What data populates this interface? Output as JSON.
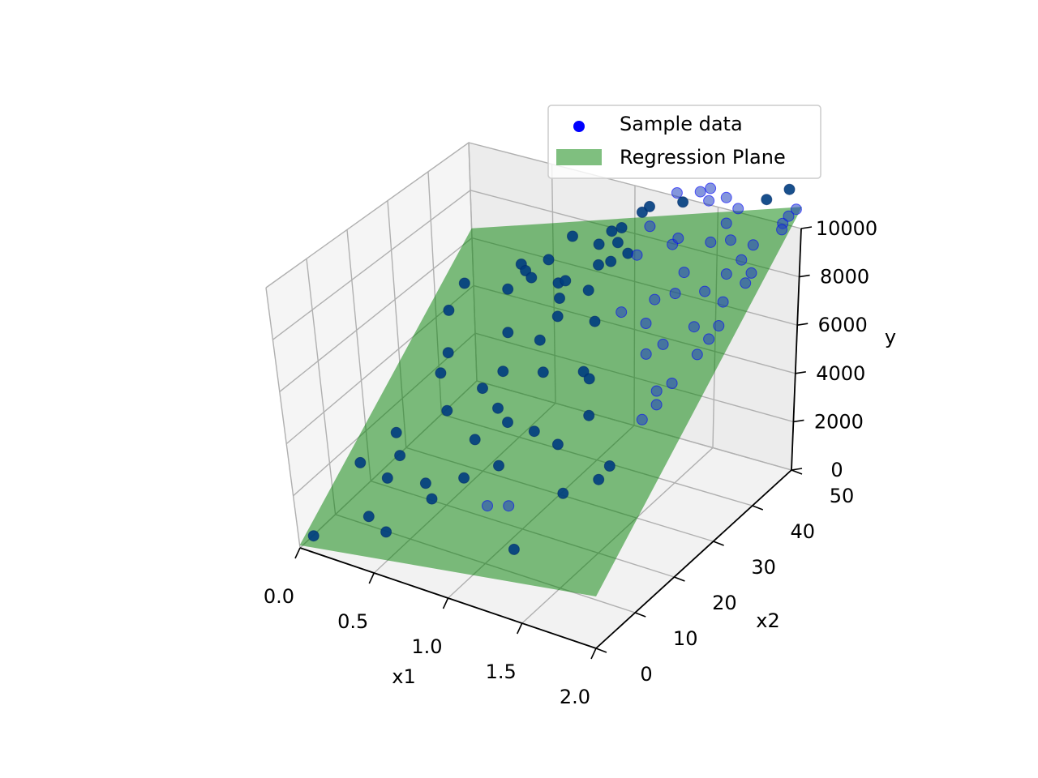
{
  "chart_data": {
    "type": "scatter",
    "projection": "3d",
    "xlabel": "x1",
    "ylabel": "x2",
    "zlabel": "y",
    "xlim": [
      0,
      2
    ],
    "ylim": [
      0,
      50
    ],
    "zlim": [
      0,
      10000
    ],
    "x_ticks": [
      0.0,
      0.5,
      1.0,
      1.5,
      2.0
    ],
    "x_tick_labels": [
      "0.0",
      "0.5",
      "1.0",
      "1.5",
      "2.0"
    ],
    "y_ticks": [
      0,
      10,
      20,
      30,
      40,
      50
    ],
    "y_tick_labels": [
      "0",
      "10",
      "20",
      "30",
      "40",
      "50"
    ],
    "z_ticks": [
      0,
      2000,
      4000,
      6000,
      8000,
      10000
    ],
    "z_tick_labels": [
      "0",
      "2000",
      "4000",
      "6000",
      "8000",
      "10000"
    ],
    "grid": true,
    "legend_position": "upper-right",
    "series": [
      {
        "name": "Sample data",
        "kind": "scatter",
        "color": "#0000ff",
        "points": [
          [
            0.05,
            2.0,
            300
          ],
          [
            0.1,
            14.0,
            1700
          ],
          [
            0.12,
            38.5,
            4700
          ],
          [
            0.14,
            42.0,
            5400
          ],
          [
            0.2,
            20.0,
            2300
          ],
          [
            0.24,
            33.0,
            3900
          ],
          [
            0.26,
            30.0,
            3500
          ],
          [
            0.29,
            17.0,
            1950
          ],
          [
            0.3,
            13.0,
            1600
          ],
          [
            0.31,
            7.0,
            900
          ],
          [
            0.35,
            48.0,
            5800
          ],
          [
            0.36,
            44.0,
            5300
          ],
          [
            0.4,
            47.0,
            5750
          ],
          [
            0.44,
            24.0,
            3100
          ],
          [
            0.46,
            46.0,
            5700
          ],
          [
            0.5,
            4.0,
            1050
          ],
          [
            0.52,
            48.0,
            6300
          ],
          [
            0.55,
            36.0,
            4900
          ],
          [
            0.58,
            12.0,
            2050
          ],
          [
            0.6,
            27.0,
            3900
          ],
          [
            0.62,
            50.0,
            7200
          ],
          [
            0.66,
            30.0,
            4300
          ],
          [
            0.68,
            9.5,
            1950
          ],
          [
            0.7,
            43.0,
            6300
          ],
          [
            0.72,
            44.0,
            6300
          ],
          [
            0.74,
            19.0,
            3150
          ],
          [
            0.77,
            24.0,
            3800
          ],
          [
            0.78,
            40.0,
            6200
          ],
          [
            0.8,
            34.0,
            5300
          ],
          [
            0.81,
            13.0,
            2550
          ],
          [
            0.83,
            48.0,
            7500
          ],
          [
            0.84,
            37.0,
            5950
          ],
          [
            0.86,
            50.0,
            7850
          ],
          [
            0.88,
            22.0,
            3700
          ],
          [
            0.9,
            45.0,
            7150
          ],
          [
            0.92,
            50.0,
            8100
          ],
          [
            0.94,
            29.0,
            4900
          ],
          [
            0.96,
            40.0,
            6850
          ],
          [
            0.97,
            47.0,
            7950
          ],
          [
            0.99,
            15.0,
            3100
          ],
          [
            1.0,
            44.0,
            7600
          ],
          [
            1.02,
            51.0,
            8800
          ],
          [
            1.04,
            52.0,
            8950
          ],
          [
            1.06,
            9.0,
            2450
          ],
          [
            1.08,
            45.0,
            7950
          ],
          [
            1.1,
            20.0,
            4000
          ],
          [
            1.12,
            35.0,
            6500
          ],
          [
            1.14,
            48.0,
            8800
          ],
          [
            1.16,
            44.0,
            8150
          ],
          [
            1.18,
            53.0,
            9650
          ],
          [
            1.2,
            9.0,
            2700
          ],
          [
            1.22,
            28.0,
            5550
          ],
          [
            1.24,
            52.0,
            9500
          ],
          [
            1.26,
            36.0,
            7000
          ],
          [
            1.28,
            27.0,
            5500
          ],
          [
            1.3,
            18.0,
            4100
          ],
          [
            1.32,
            53.0,
            9950
          ],
          [
            1.33,
            5.0,
            1800
          ],
          [
            1.35,
            45.0,
            8800
          ],
          [
            1.36,
            46.0,
            8950
          ],
          [
            1.38,
            53.0,
            10200
          ],
          [
            1.4,
            22.0,
            4900
          ],
          [
            1.42,
            51.0,
            10000
          ],
          [
            1.44,
            37.0,
            7700
          ],
          [
            1.46,
            34.0,
            7150
          ],
          [
            1.48,
            12.0,
            3300
          ],
          [
            1.5,
            52.0,
            10150
          ],
          [
            1.52,
            41.0,
            8450
          ],
          [
            1.54,
            38.0,
            8000
          ],
          [
            1.56,
            30.0,
            6600
          ],
          [
            1.58,
            45.0,
            9300
          ],
          [
            1.6,
            48.0,
            9750
          ],
          [
            1.62,
            50.0,
            10150
          ],
          [
            1.64,
            31.0,
            7000
          ],
          [
            1.66,
            14.0,
            3900
          ],
          [
            1.68,
            16.0,
            4200
          ],
          [
            1.7,
            45.0,
            9600
          ],
          [
            1.72,
            38.0,
            8400
          ],
          [
            1.74,
            52.0,
            10500
          ],
          [
            1.75,
            25.0,
            6100
          ],
          [
            1.76,
            21.0,
            5500
          ],
          [
            1.78,
            33.0,
            7700
          ],
          [
            1.8,
            23.0,
            5900
          ],
          [
            1.8,
            40.0,
            9000
          ],
          [
            1.82,
            26.0,
            6400
          ],
          [
            1.84,
            42.0,
            9400
          ],
          [
            1.85,
            53.0,
            11000
          ],
          [
            1.86,
            44.0,
            9800
          ],
          [
            1.88,
            36.0,
            8500
          ],
          [
            1.9,
            29.0,
            7300
          ],
          [
            1.92,
            31.0,
            7700
          ],
          [
            1.93,
            33.0,
            8000
          ],
          [
            1.94,
            39.0,
            9000
          ],
          [
            1.95,
            40.0,
            9300
          ],
          [
            1.96,
            47.0,
            10500
          ],
          [
            1.97,
            48.0,
            10700
          ],
          [
            1.98,
            46.0,
            10400
          ],
          [
            1.99,
            49.0,
            10900
          ]
        ]
      },
      {
        "name": "Regression Plane",
        "kind": "surface",
        "color": "#008000",
        "x_range": [
          0,
          2
        ],
        "y_range": [
          0,
          50
        ],
        "plane_z": {
          "x0y0": 100,
          "x2y0": 1900,
          "x0y50": 6400,
          "x2y50": 10900
        }
      }
    ]
  },
  "legend": {
    "items": [
      {
        "label": "Sample data",
        "color": "#0000ff"
      },
      {
        "label": "Regression Plane",
        "color": "#008000"
      }
    ]
  }
}
